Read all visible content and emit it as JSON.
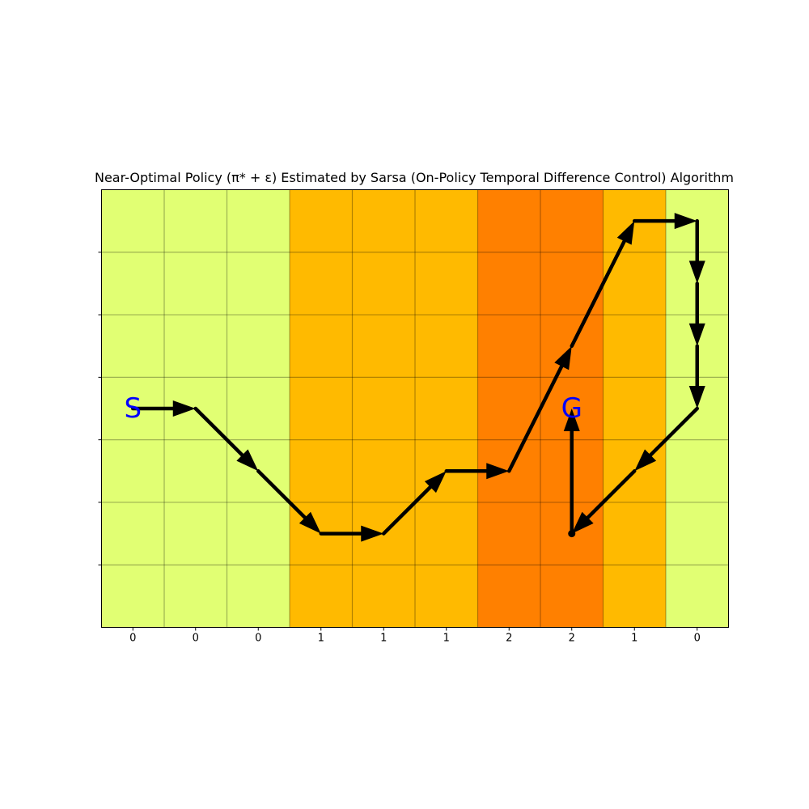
{
  "title": "Near-Optimal Policy (π* + ε) Estimated by Sarsa (On-Policy Temporal Difference Control) Algorithm",
  "grid": {
    "columns": 10,
    "rows": 7
  },
  "wind": {
    "values": [
      0,
      0,
      0,
      1,
      1,
      1,
      2,
      2,
      1,
      0
    ],
    "colors": {
      "0": "#e1ff73",
      "1": "#ffba00",
      "2": "#ff8000"
    }
  },
  "start": {
    "label": "S",
    "col": 0,
    "row": 3,
    "color": "#0000ff"
  },
  "goal": {
    "label": "G",
    "col": 7,
    "row": 3,
    "color": "#0000ff"
  },
  "path": [
    [
      0,
      3
    ],
    [
      1,
      3
    ],
    [
      2,
      4
    ],
    [
      3,
      5
    ],
    [
      4,
      5
    ],
    [
      5,
      4
    ],
    [
      6,
      4
    ],
    [
      7,
      2
    ],
    [
      8,
      0
    ],
    [
      9,
      0
    ],
    [
      9,
      1
    ],
    [
      9,
      2
    ],
    [
      9,
      3
    ],
    [
      8,
      4
    ],
    [
      7,
      5
    ],
    [
      7,
      3
    ]
  ]
}
